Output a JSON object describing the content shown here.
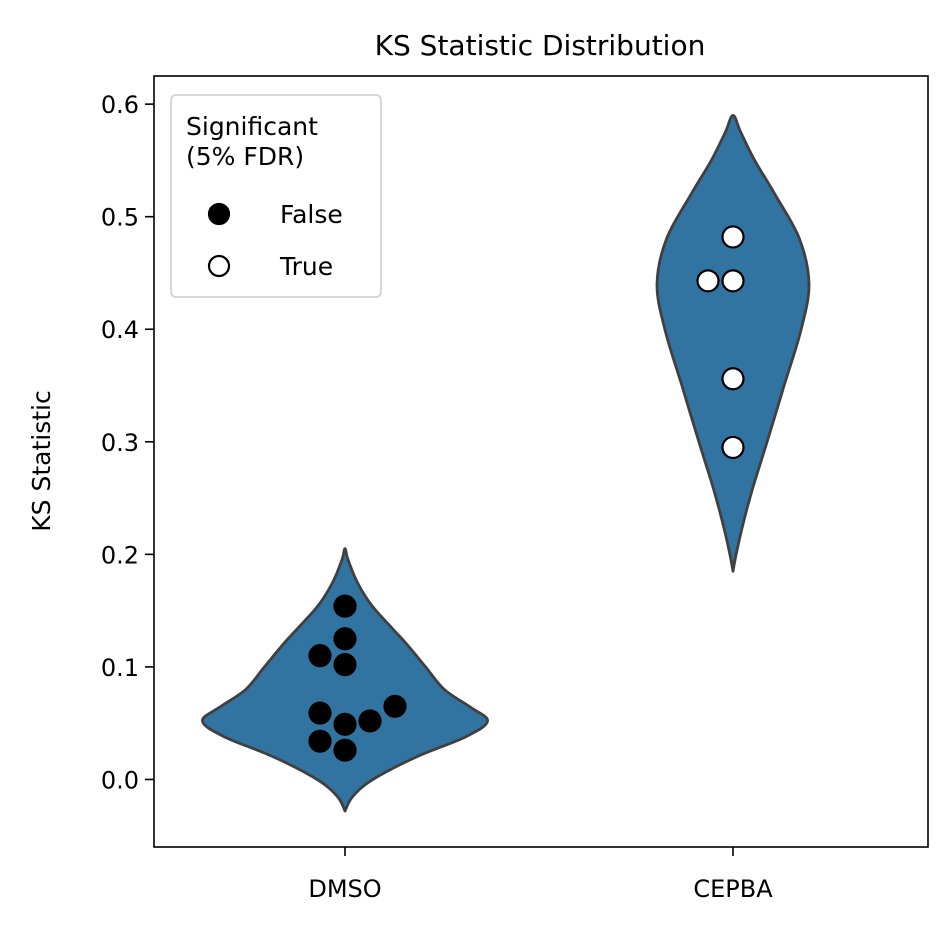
{
  "chart_data": {
    "type": "violin",
    "title": "KS Statistic Distribution",
    "xlabel": "",
    "ylabel": "KS Statistic",
    "categories": [
      "DMSO",
      "CEPBA"
    ],
    "ylim": [
      -0.06,
      0.625
    ],
    "yticks": [
      0.0,
      0.1,
      0.2,
      0.3,
      0.4,
      0.5,
      0.6
    ],
    "ytick_labels": [
      "0.0",
      "0.1",
      "0.2",
      "0.3",
      "0.4",
      "0.5",
      "0.6"
    ],
    "grid": false,
    "legend": {
      "title": "Significant\n(5% FDR)",
      "placement": "top-left",
      "entries": [
        {
          "label": "False",
          "marker": "filled"
        },
        {
          "label": "True",
          "marker": "hollow"
        }
      ]
    },
    "violin_color": "#3274a1",
    "outline_color": "#404040",
    "violins": [
      {
        "category": "DMSO",
        "ymin": -0.028,
        "ymax": 0.205,
        "profile": [
          [
            -0.028,
            0.0
          ],
          [
            -0.015,
            0.05
          ],
          [
            0.0,
            0.18
          ],
          [
            0.02,
            0.46
          ],
          [
            0.038,
            0.78
          ],
          [
            0.052,
            0.92
          ],
          [
            0.065,
            0.8
          ],
          [
            0.08,
            0.64
          ],
          [
            0.1,
            0.52
          ],
          [
            0.12,
            0.4
          ],
          [
            0.135,
            0.3
          ],
          [
            0.155,
            0.17
          ],
          [
            0.175,
            0.08
          ],
          [
            0.195,
            0.02
          ],
          [
            0.205,
            0.0
          ]
        ]
      },
      {
        "category": "CEPBA",
        "ymin": 0.185,
        "ymax": 0.59,
        "profile": [
          [
            0.185,
            0.0
          ],
          [
            0.2,
            0.02
          ],
          [
            0.23,
            0.07
          ],
          [
            0.26,
            0.13
          ],
          [
            0.3,
            0.22
          ],
          [
            0.35,
            0.33
          ],
          [
            0.4,
            0.44
          ],
          [
            0.44,
            0.49
          ],
          [
            0.48,
            0.43
          ],
          [
            0.52,
            0.27
          ],
          [
            0.55,
            0.14
          ],
          [
            0.575,
            0.05
          ],
          [
            0.59,
            0.0
          ]
        ]
      }
    ],
    "points": [
      {
        "category": "DMSO",
        "y": 0.154,
        "offset": 0,
        "significant": false
      },
      {
        "category": "DMSO",
        "y": 0.125,
        "offset": 0,
        "significant": false
      },
      {
        "category": "DMSO",
        "y": 0.11,
        "offset": -1,
        "significant": false
      },
      {
        "category": "DMSO",
        "y": 0.102,
        "offset": 0,
        "significant": false
      },
      {
        "category": "DMSO",
        "y": 0.065,
        "offset": 2,
        "significant": false
      },
      {
        "category": "DMSO",
        "y": 0.059,
        "offset": -1,
        "significant": false
      },
      {
        "category": "DMSO",
        "y": 0.052,
        "offset": 1,
        "significant": false
      },
      {
        "category": "DMSO",
        "y": 0.049,
        "offset": 0,
        "significant": false
      },
      {
        "category": "DMSO",
        "y": 0.034,
        "offset": -1,
        "significant": false
      },
      {
        "category": "DMSO",
        "y": 0.026,
        "offset": 0,
        "significant": false
      },
      {
        "category": "CEPBA",
        "y": 0.482,
        "offset": 0,
        "significant": true
      },
      {
        "category": "CEPBA",
        "y": 0.443,
        "offset": -1,
        "significant": true
      },
      {
        "category": "CEPBA",
        "y": 0.443,
        "offset": 0,
        "significant": true
      },
      {
        "category": "CEPBA",
        "y": 0.356,
        "offset": 0,
        "significant": true
      },
      {
        "category": "CEPBA",
        "y": 0.295,
        "offset": 0,
        "significant": true
      }
    ]
  }
}
